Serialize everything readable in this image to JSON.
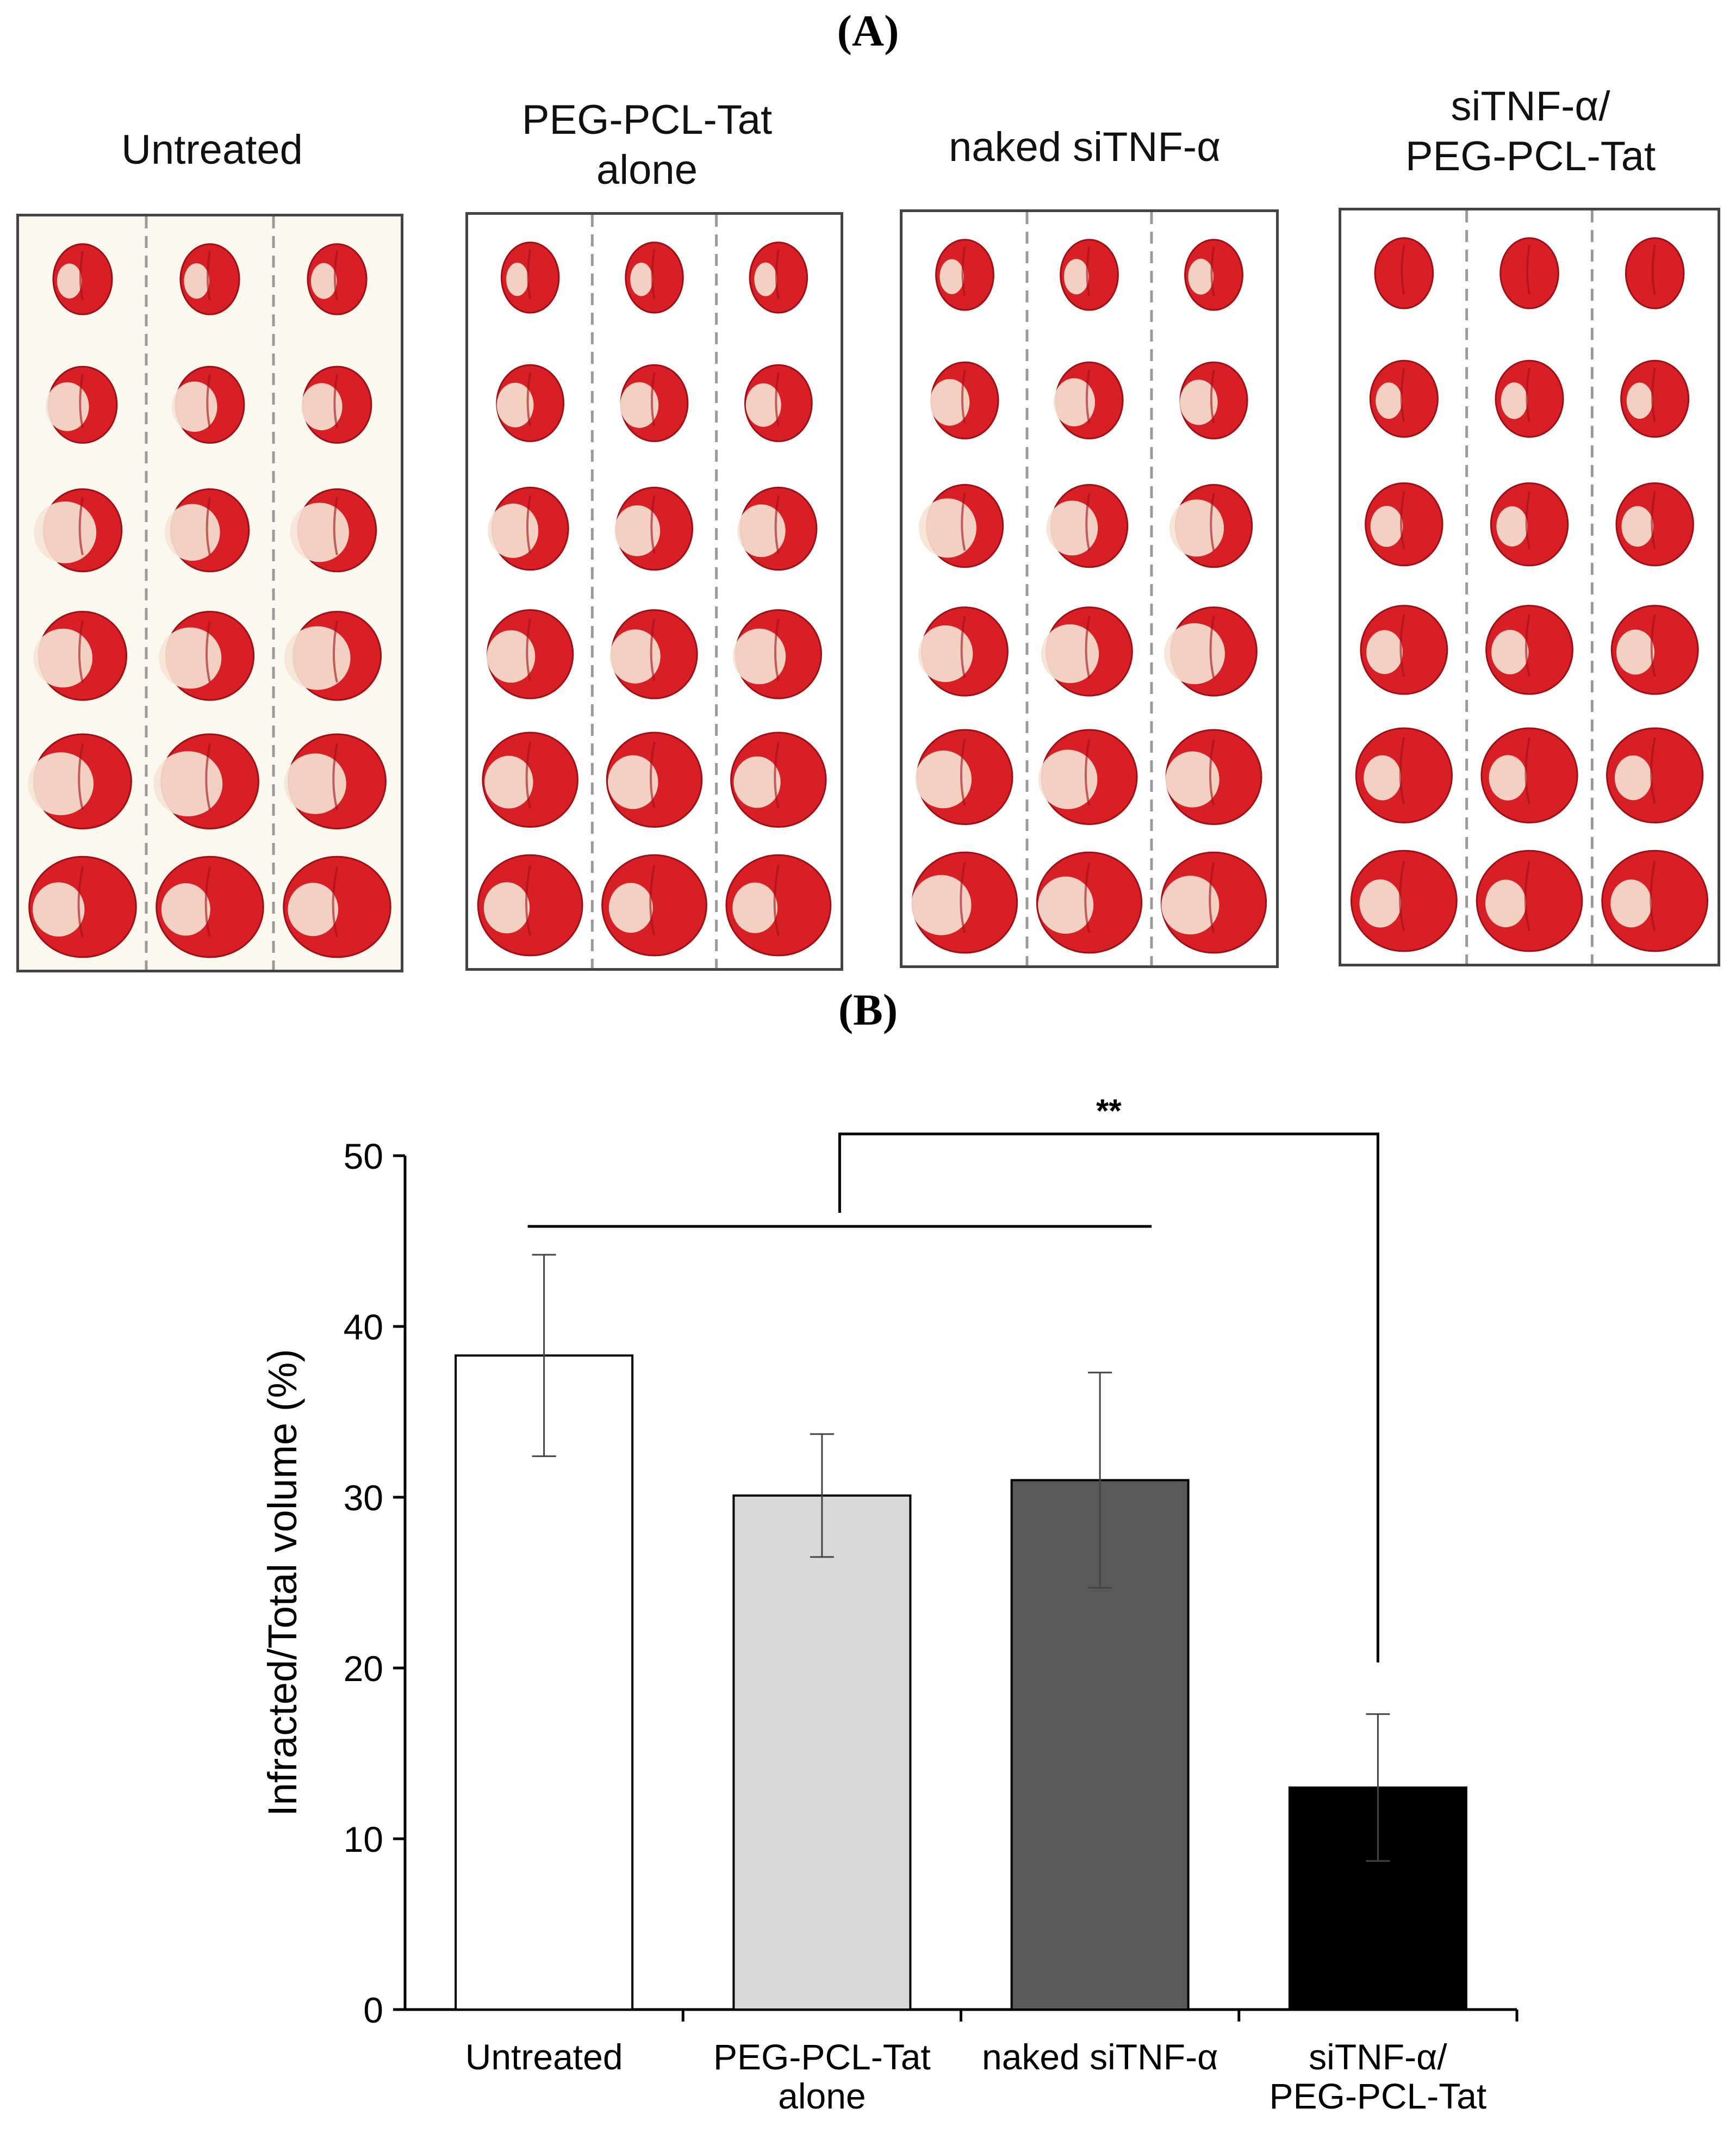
{
  "panel_labels": {
    "a": "(A)",
    "b": "(B)"
  },
  "groups": [
    {
      "title": "Untreated",
      "infarct": [
        0.1,
        0.35,
        0.5,
        0.45,
        0.4,
        0.15
      ]
    },
    {
      "title": "PEG-PCL-Tat\nalone",
      "infarct": [
        0.05,
        0.25,
        0.35,
        0.3,
        0.2,
        0.1
      ]
    },
    {
      "title": "naked siTNF-α",
      "infarct": [
        0.1,
        0.3,
        0.45,
        0.4,
        0.3,
        0.25
      ]
    },
    {
      "title": "siTNF-α/\nPEG-PCL-Tat",
      "infarct": [
        0.0,
        0.05,
        0.08,
        0.1,
        0.05,
        0.05
      ]
    }
  ],
  "colors": {
    "tissue": "#d81f26",
    "tissue_dark": "#9e0f16",
    "infarct": "#f6e3d4",
    "background_untreated": "#fbf8ef",
    "background_other": "#ffffff"
  },
  "chart_data": {
    "type": "bar",
    "categories": [
      "Untreated",
      "PEG-PCL-Tat\nalone",
      "naked siTNF-α",
      "siTNF-α/\nPEG-PCL-Tat"
    ],
    "values": [
      38.3,
      30.1,
      31.0,
      13.0
    ],
    "errors": [
      5.9,
      3.6,
      6.3,
      4.3
    ],
    "bar_colors": [
      "#ffffff",
      "#d9d9d9",
      "#595959",
      "#000000"
    ],
    "title": "",
    "xlabel": "",
    "ylabel": "Infracted/Total volume (%)",
    "ylim": [
      0,
      50
    ],
    "yticks": [
      0,
      10,
      20,
      30,
      40,
      50
    ],
    "annotation": "**",
    "grid": false,
    "legend": "none"
  }
}
